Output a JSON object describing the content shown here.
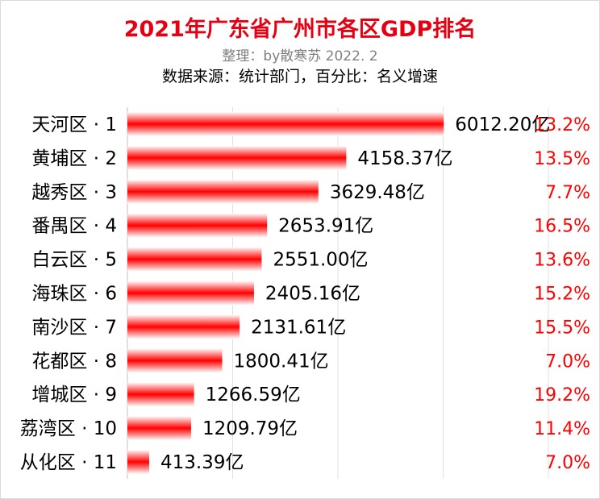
{
  "title": "2021年广东省广州市各区GDP排名",
  "subtitle": "整理：by散寒苏  2022. 2",
  "source": "数据来源：统计部门，百分比：名义增速",
  "colors": {
    "title": "#e60012",
    "bar": "#ff0000",
    "bar_edge": "#ffffff",
    "growth": "#ff0000"
  },
  "chart_data": {
    "type": "bar",
    "orientation": "horizontal",
    "categories": [
      "天河区 · 1",
      "黄埔区 · 2",
      "越秀区 · 3",
      "番禺区 · 4",
      "白云区 · 5",
      "海珠区 · 6",
      "南沙区 · 7",
      "花都区 · 8",
      "增城区 · 9",
      "荔湾区 · 10",
      "从化区 · 11"
    ],
    "values": [
      6012.2,
      4158.37,
      3629.48,
      2653.91,
      2551.0,
      2405.16,
      2131.61,
      1800.41,
      1266.59,
      1209.79,
      413.39
    ],
    "value_labels": [
      "6012.20亿",
      "4158.37亿",
      "3629.48亿",
      "2653.91亿",
      "2551.00亿",
      "2405.16亿",
      "2131.61亿",
      "1800.41亿",
      "1266.59亿",
      "1209.79亿",
      "413.39亿"
    ],
    "growth_labels": [
      "13.2%",
      "13.5%",
      "7.7%",
      "16.5%",
      "13.6%",
      "15.2%",
      "15.5%",
      "7.0%",
      "19.2%",
      "11.4%",
      "7.0%"
    ],
    "xlim": [
      0,
      8000
    ],
    "grid": true,
    "legend": "none"
  }
}
